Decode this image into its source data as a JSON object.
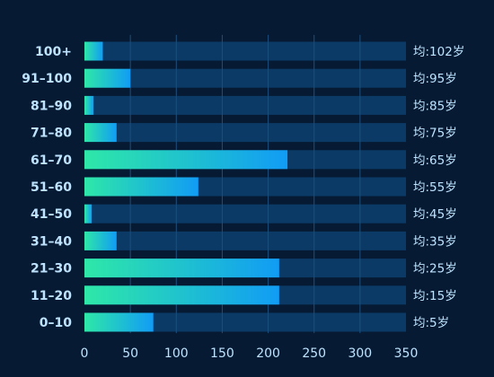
{
  "chart_data": {
    "type": "bar",
    "orientation": "horizontal",
    "title": "",
    "xlabel": "",
    "ylabel": "",
    "xlim": [
      0,
      350
    ],
    "x_ticks": [
      "0",
      "50",
      "100",
      "150",
      "200",
      "250",
      "300",
      "350"
    ],
    "grid": "vertical",
    "categories": [
      "100+",
      "91–100",
      "81–90",
      "71–80",
      "61–70",
      "51–60",
      "41–50",
      "31–40",
      "21–30",
      "11–20",
      "0–10"
    ],
    "values": [
      20,
      50,
      10,
      35,
      221,
      124,
      8,
      35,
      212,
      212,
      75
    ],
    "right_labels": [
      "均:102岁",
      "均:95岁",
      "均:85岁",
      "均:75岁",
      "均:65岁",
      "均:55岁",
      "均:45岁",
      "均:35岁",
      "均:25岁",
      "均:15岁",
      "均:5岁"
    ],
    "background_bar_max": 350,
    "colors": {
      "page_background": "#061b33",
      "track": "#0b3a66",
      "gradient_start": "#2ee8a8",
      "gradient_end": "#119cf5",
      "text": "#bfe3ff",
      "grid": "#1d4f7d"
    }
  }
}
